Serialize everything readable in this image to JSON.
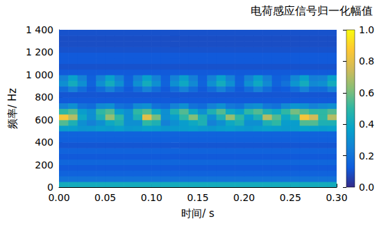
{
  "chart_data": {
    "type": "heatmap",
    "x_label": "时间/ s",
    "y_label": "频率/ Hz",
    "colorbar_label": "电荷感应信号归一化幅值",
    "xlim": [
      0,
      0.3
    ],
    "xticks": [
      {
        "value": 0,
        "label": "0.00"
      },
      0.05,
      {
        "value": 0.1,
        "label": "0.10"
      },
      0.15,
      {
        "value": 0.2,
        "label": "0.20"
      },
      0.25,
      {
        "value": 0.3,
        "label": "0.30"
      }
    ],
    "ylim": [
      0,
      1400
    ],
    "yticks": [
      0,
      200,
      400,
      600,
      800,
      {
        "value": 1000,
        "label": "1 000"
      },
      {
        "value": 1200,
        "label": "1 200"
      },
      {
        "value": 1400,
        "label": "1 400"
      }
    ],
    "color_range": [
      0,
      1
    ],
    "color_ticks": [
      {
        "value": 0,
        "label": "0.0"
      },
      0.2,
      0.4,
      0.6,
      0.8,
      {
        "value": 1,
        "label": "1.0"
      }
    ],
    "time_edges": [
      0,
      0.01,
      0.02,
      0.03,
      0.04,
      0.05,
      0.06,
      0.07,
      0.08,
      0.09,
      0.1,
      0.11,
      0.12,
      0.13,
      0.14,
      0.15,
      0.16,
      0.17,
      0.18,
      0.19,
      0.2,
      0.21,
      0.22,
      0.23,
      0.24,
      0.25,
      0.26,
      0.27,
      0.28,
      0.29,
      0.3
    ],
    "frequency_edges": [
      0,
      50,
      100,
      150,
      200,
      250,
      300,
      350,
      400,
      450,
      500,
      550,
      600,
      650,
      700,
      750,
      800,
      850,
      900,
      950,
      1000,
      1050,
      1100,
      1150,
      1200,
      1250,
      1300,
      1350,
      1400
    ],
    "cells": [
      [
        0.42,
        0.42,
        0.42,
        0.42,
        0.42,
        0.42,
        0.42,
        0.42,
        0.42,
        0.42,
        0.42,
        0.42,
        0.42,
        0.42,
        0.42,
        0.42,
        0.42,
        0.42,
        0.42,
        0.42,
        0.42,
        0.42,
        0.42,
        0.42,
        0.42,
        0.42,
        0.42,
        0.42,
        0.42,
        0.42
      ],
      [
        0.2,
        0.2,
        0.2,
        0.2,
        0.2,
        0.2,
        0.2,
        0.2,
        0.2,
        0.2,
        0.2,
        0.2,
        0.2,
        0.2,
        0.2,
        0.2,
        0.2,
        0.2,
        0.2,
        0.2,
        0.2,
        0.2,
        0.2,
        0.2,
        0.2,
        0.2,
        0.2,
        0.2,
        0.2,
        0.2
      ],
      [
        0.15,
        0.15,
        0.15,
        0.15,
        0.15,
        0.15,
        0.15,
        0.15,
        0.15,
        0.15,
        0.15,
        0.15,
        0.15,
        0.15,
        0.15,
        0.15,
        0.15,
        0.15,
        0.15,
        0.15,
        0.15,
        0.15,
        0.15,
        0.15,
        0.15,
        0.15,
        0.15,
        0.15,
        0.15,
        0.15
      ],
      [
        0.12,
        0.12,
        0.12,
        0.12,
        0.12,
        0.12,
        0.12,
        0.12,
        0.12,
        0.12,
        0.12,
        0.12,
        0.12,
        0.12,
        0.12,
        0.12,
        0.12,
        0.12,
        0.12,
        0.12,
        0.12,
        0.12,
        0.12,
        0.12,
        0.12,
        0.12,
        0.12,
        0.12,
        0.12,
        0.12
      ],
      [
        0.16,
        0.16,
        0.16,
        0.16,
        0.16,
        0.16,
        0.16,
        0.16,
        0.16,
        0.16,
        0.16,
        0.16,
        0.16,
        0.16,
        0.16,
        0.16,
        0.16,
        0.16,
        0.16,
        0.16,
        0.16,
        0.16,
        0.16,
        0.16,
        0.16,
        0.16,
        0.16,
        0.16,
        0.16,
        0.16
      ],
      [
        0.12,
        0.12,
        0.12,
        0.12,
        0.12,
        0.12,
        0.12,
        0.12,
        0.12,
        0.12,
        0.12,
        0.12,
        0.12,
        0.12,
        0.12,
        0.12,
        0.12,
        0.12,
        0.12,
        0.12,
        0.12,
        0.12,
        0.12,
        0.12,
        0.12,
        0.12,
        0.12,
        0.12,
        0.12,
        0.12
      ],
      [
        0.15,
        0.15,
        0.15,
        0.15,
        0.15,
        0.15,
        0.15,
        0.15,
        0.15,
        0.15,
        0.15,
        0.15,
        0.15,
        0.15,
        0.15,
        0.15,
        0.15,
        0.15,
        0.15,
        0.15,
        0.15,
        0.15,
        0.15,
        0.15,
        0.15,
        0.15,
        0.15,
        0.15,
        0.15,
        0.15
      ],
      [
        0.11,
        0.11,
        0.11,
        0.11,
        0.11,
        0.11,
        0.11,
        0.11,
        0.11,
        0.11,
        0.11,
        0.11,
        0.11,
        0.11,
        0.11,
        0.11,
        0.11,
        0.11,
        0.11,
        0.11,
        0.11,
        0.11,
        0.11,
        0.11,
        0.11,
        0.11,
        0.11,
        0.11,
        0.11,
        0.11
      ],
      [
        0.14,
        0.14,
        0.14,
        0.14,
        0.14,
        0.14,
        0.14,
        0.14,
        0.14,
        0.14,
        0.14,
        0.14,
        0.14,
        0.14,
        0.14,
        0.14,
        0.14,
        0.14,
        0.14,
        0.14,
        0.14,
        0.14,
        0.14,
        0.14,
        0.14,
        0.14,
        0.14,
        0.14,
        0.14,
        0.14
      ],
      [
        0.15,
        0.15,
        0.15,
        0.15,
        0.15,
        0.15,
        0.15,
        0.15,
        0.15,
        0.15,
        0.15,
        0.15,
        0.15,
        0.15,
        0.15,
        0.15,
        0.15,
        0.15,
        0.15,
        0.15,
        0.15,
        0.15,
        0.15,
        0.15,
        0.15,
        0.15,
        0.15,
        0.15,
        0.15,
        0.15
      ],
      [
        0.35,
        0.35,
        0.32,
        0.33,
        0.35,
        0.34,
        0.36,
        0.33,
        0.34,
        0.36,
        0.35,
        0.33,
        0.34,
        0.35,
        0.36,
        0.34,
        0.33,
        0.35,
        0.36,
        0.34,
        0.33,
        0.35,
        0.36,
        0.35,
        0.34,
        0.35,
        0.37,
        0.36,
        0.35,
        0.36
      ],
      [
        0.55,
        0.45,
        0.3,
        0.25,
        0.3,
        0.4,
        0.45,
        0.3,
        0.3,
        0.5,
        0.45,
        0.25,
        0.3,
        0.35,
        0.4,
        0.45,
        0.25,
        0.3,
        0.4,
        0.45,
        0.3,
        0.3,
        0.45,
        0.5,
        0.35,
        0.35,
        0.55,
        0.55,
        0.45,
        0.45
      ],
      [
        0.85,
        0.7,
        0.4,
        0.3,
        0.45,
        0.65,
        0.5,
        0.3,
        0.45,
        0.8,
        0.6,
        0.3,
        0.35,
        0.5,
        0.62,
        0.45,
        0.3,
        0.45,
        0.65,
        0.5,
        0.35,
        0.45,
        0.7,
        0.55,
        0.4,
        0.5,
        0.85,
        0.75,
        0.5,
        0.7
      ],
      [
        0.5,
        0.55,
        0.35,
        0.3,
        0.5,
        0.55,
        0.35,
        0.3,
        0.5,
        0.55,
        0.4,
        0.3,
        0.45,
        0.55,
        0.4,
        0.3,
        0.45,
        0.55,
        0.4,
        0.35,
        0.5,
        0.55,
        0.45,
        0.4,
        0.5,
        0.6,
        0.55,
        0.5,
        0.5,
        0.55
      ],
      [
        0.25,
        0.3,
        0.2,
        0.18,
        0.28,
        0.3,
        0.2,
        0.18,
        0.28,
        0.3,
        0.2,
        0.18,
        0.25,
        0.3,
        0.2,
        0.18,
        0.25,
        0.3,
        0.22,
        0.2,
        0.28,
        0.3,
        0.22,
        0.2,
        0.28,
        0.32,
        0.3,
        0.25,
        0.28,
        0.3
      ],
      [
        0.12,
        0.12,
        0.12,
        0.12,
        0.12,
        0.12,
        0.12,
        0.12,
        0.12,
        0.12,
        0.12,
        0.12,
        0.12,
        0.12,
        0.12,
        0.12,
        0.12,
        0.12,
        0.12,
        0.12,
        0.12,
        0.12,
        0.12,
        0.12,
        0.12,
        0.12,
        0.12,
        0.12,
        0.12,
        0.12
      ],
      [
        0.11,
        0.11,
        0.11,
        0.11,
        0.11,
        0.11,
        0.11,
        0.11,
        0.11,
        0.11,
        0.11,
        0.11,
        0.11,
        0.11,
        0.11,
        0.11,
        0.11,
        0.11,
        0.11,
        0.11,
        0.11,
        0.11,
        0.11,
        0.11,
        0.11,
        0.11,
        0.11,
        0.11,
        0.11,
        0.11
      ],
      [
        0.18,
        0.25,
        0.18,
        0.12,
        0.18,
        0.25,
        0.18,
        0.12,
        0.18,
        0.25,
        0.18,
        0.12,
        0.18,
        0.25,
        0.18,
        0.12,
        0.18,
        0.25,
        0.18,
        0.12,
        0.18,
        0.25,
        0.18,
        0.12,
        0.13,
        0.18,
        0.25,
        0.18,
        0.18,
        0.25
      ],
      [
        0.3,
        0.42,
        0.3,
        0.15,
        0.3,
        0.42,
        0.3,
        0.15,
        0.3,
        0.42,
        0.3,
        0.15,
        0.3,
        0.4,
        0.28,
        0.15,
        0.3,
        0.42,
        0.3,
        0.15,
        0.3,
        0.4,
        0.28,
        0.15,
        0.2,
        0.32,
        0.42,
        0.28,
        0.3,
        0.42
      ],
      [
        0.25,
        0.36,
        0.25,
        0.14,
        0.25,
        0.36,
        0.25,
        0.14,
        0.25,
        0.36,
        0.25,
        0.14,
        0.25,
        0.35,
        0.24,
        0.14,
        0.25,
        0.36,
        0.25,
        0.14,
        0.25,
        0.35,
        0.24,
        0.14,
        0.16,
        0.27,
        0.36,
        0.24,
        0.25,
        0.36
      ],
      [
        0.12,
        0.12,
        0.12,
        0.12,
        0.12,
        0.12,
        0.12,
        0.12,
        0.12,
        0.12,
        0.12,
        0.12,
        0.12,
        0.12,
        0.12,
        0.12,
        0.12,
        0.12,
        0.12,
        0.12,
        0.12,
        0.12,
        0.12,
        0.12,
        0.12,
        0.12,
        0.12,
        0.12,
        0.12,
        0.12
      ],
      [
        0.1,
        0.1,
        0.1,
        0.1,
        0.1,
        0.1,
        0.1,
        0.1,
        0.1,
        0.1,
        0.1,
        0.1,
        0.1,
        0.1,
        0.1,
        0.1,
        0.1,
        0.1,
        0.1,
        0.1,
        0.1,
        0.1,
        0.1,
        0.1,
        0.1,
        0.1,
        0.1,
        0.1,
        0.1,
        0.1
      ],
      [
        0.12,
        0.12,
        0.12,
        0.12,
        0.12,
        0.12,
        0.12,
        0.12,
        0.12,
        0.12,
        0.12,
        0.12,
        0.12,
        0.12,
        0.12,
        0.12,
        0.12,
        0.12,
        0.12,
        0.12,
        0.12,
        0.12,
        0.12,
        0.12,
        0.12,
        0.12,
        0.12,
        0.12,
        0.12,
        0.12
      ],
      [
        0.12,
        0.12,
        0.12,
        0.12,
        0.12,
        0.12,
        0.12,
        0.12,
        0.12,
        0.12,
        0.12,
        0.12,
        0.12,
        0.12,
        0.12,
        0.12,
        0.12,
        0.12,
        0.12,
        0.12,
        0.12,
        0.12,
        0.12,
        0.12,
        0.12,
        0.12,
        0.12,
        0.12,
        0.12,
        0.12
      ],
      [
        0.1,
        0.1,
        0.1,
        0.1,
        0.1,
        0.1,
        0.1,
        0.1,
        0.1,
        0.1,
        0.1,
        0.1,
        0.1,
        0.1,
        0.1,
        0.1,
        0.1,
        0.1,
        0.1,
        0.1,
        0.1,
        0.1,
        0.1,
        0.1,
        0.1,
        0.1,
        0.1,
        0.1,
        0.1,
        0.1
      ],
      [
        0.09,
        0.09,
        0.09,
        0.09,
        0.09,
        0.09,
        0.09,
        0.09,
        0.09,
        0.09,
        0.09,
        0.09,
        0.09,
        0.09,
        0.09,
        0.09,
        0.09,
        0.09,
        0.09,
        0.09,
        0.09,
        0.09,
        0.09,
        0.09,
        0.09,
        0.09,
        0.09,
        0.09,
        0.09,
        0.09
      ],
      [
        0.09,
        0.09,
        0.09,
        0.09,
        0.09,
        0.09,
        0.09,
        0.09,
        0.09,
        0.09,
        0.09,
        0.09,
        0.09,
        0.09,
        0.09,
        0.09,
        0.09,
        0.09,
        0.09,
        0.09,
        0.09,
        0.09,
        0.09,
        0.09,
        0.09,
        0.09,
        0.09,
        0.09,
        0.09,
        0.09
      ],
      [
        0.1,
        0.1,
        0.1,
        0.1,
        0.1,
        0.1,
        0.1,
        0.1,
        0.1,
        0.1,
        0.1,
        0.1,
        0.1,
        0.1,
        0.1,
        0.1,
        0.1,
        0.1,
        0.1,
        0.1,
        0.1,
        0.1,
        0.1,
        0.1,
        0.1,
        0.1,
        0.1,
        0.1,
        0.1,
        0.1
      ]
    ]
  }
}
